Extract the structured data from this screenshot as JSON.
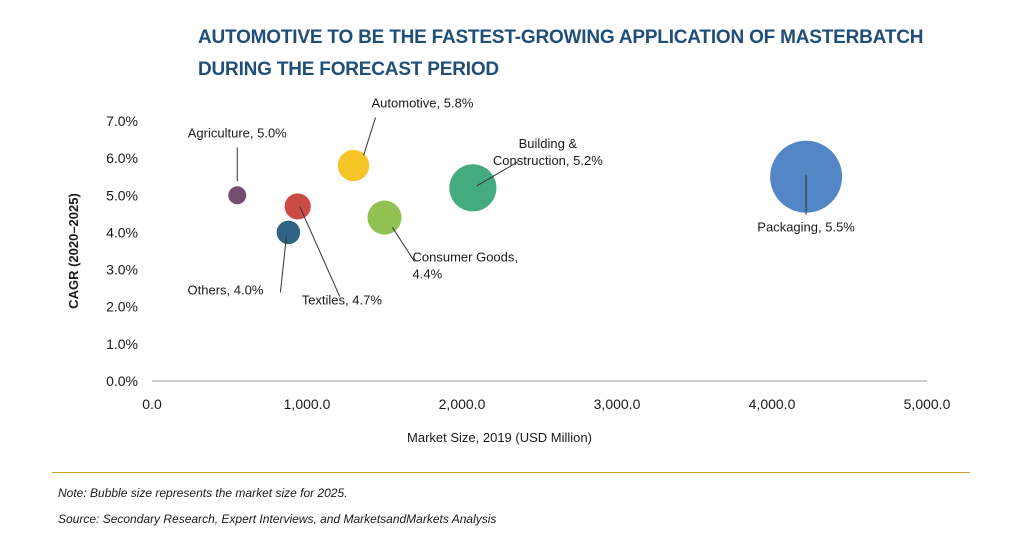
{
  "title_line1": "AUTOMOTIVE TO BE THE FASTEST-GROWING APPLICATION OF MASTERBATCH",
  "title_line2": "DURING THE FORECAST PERIOD",
  "note": "Note: Bubble size represents the market size for 2025.",
  "source": "Source: Secondary Research, Expert Interviews, and MarketsandMarkets Analysis",
  "chart_data": {
    "type": "scatter",
    "xlabel": "Market Size, 2019 (USD Million)",
    "ylabel": "CAGR (2020–2025)",
    "xlim": [
      0,
      5000
    ],
    "ylim": [
      0,
      7
    ],
    "x_ticks": [
      "0.0",
      "1,000.0",
      "2,000.0",
      "3,000.0",
      "4,000.0",
      "5,000.0"
    ],
    "y_ticks": [
      "0.0%",
      "1.0%",
      "2.0%",
      "3.0%",
      "4.0%",
      "5.0%",
      "6.0%",
      "7.0%"
    ],
    "grid": false,
    "points": [
      {
        "label": "Agriculture, 5.0%",
        "x": 550,
        "y": 5.0,
        "size": 0.12,
        "color": "#6b4466"
      },
      {
        "label": "Automotive, 5.8%",
        "x": 1300,
        "y": 5.8,
        "size": 0.24,
        "color": "#f5c21b"
      },
      {
        "label": "Building & Construction, 5.2%",
        "x": 2070,
        "y": 5.2,
        "size": 0.36,
        "color": "#3aa678"
      },
      {
        "label": "Consumer Goods, 4.4%",
        "x": 1500,
        "y": 4.4,
        "size": 0.26,
        "color": "#8dbd4a"
      },
      {
        "label": "Textiles, 4.7%",
        "x": 940,
        "y": 4.7,
        "size": 0.2,
        "color": "#c8423a"
      },
      {
        "label": "Others, 4.0%",
        "x": 880,
        "y": 4.0,
        "size": 0.18,
        "color": "#255a7c"
      },
      {
        "label": "Packaging, 5.5%",
        "x": 4220,
        "y": 5.5,
        "size": 0.55,
        "color": "#4a7fc1"
      }
    ]
  }
}
